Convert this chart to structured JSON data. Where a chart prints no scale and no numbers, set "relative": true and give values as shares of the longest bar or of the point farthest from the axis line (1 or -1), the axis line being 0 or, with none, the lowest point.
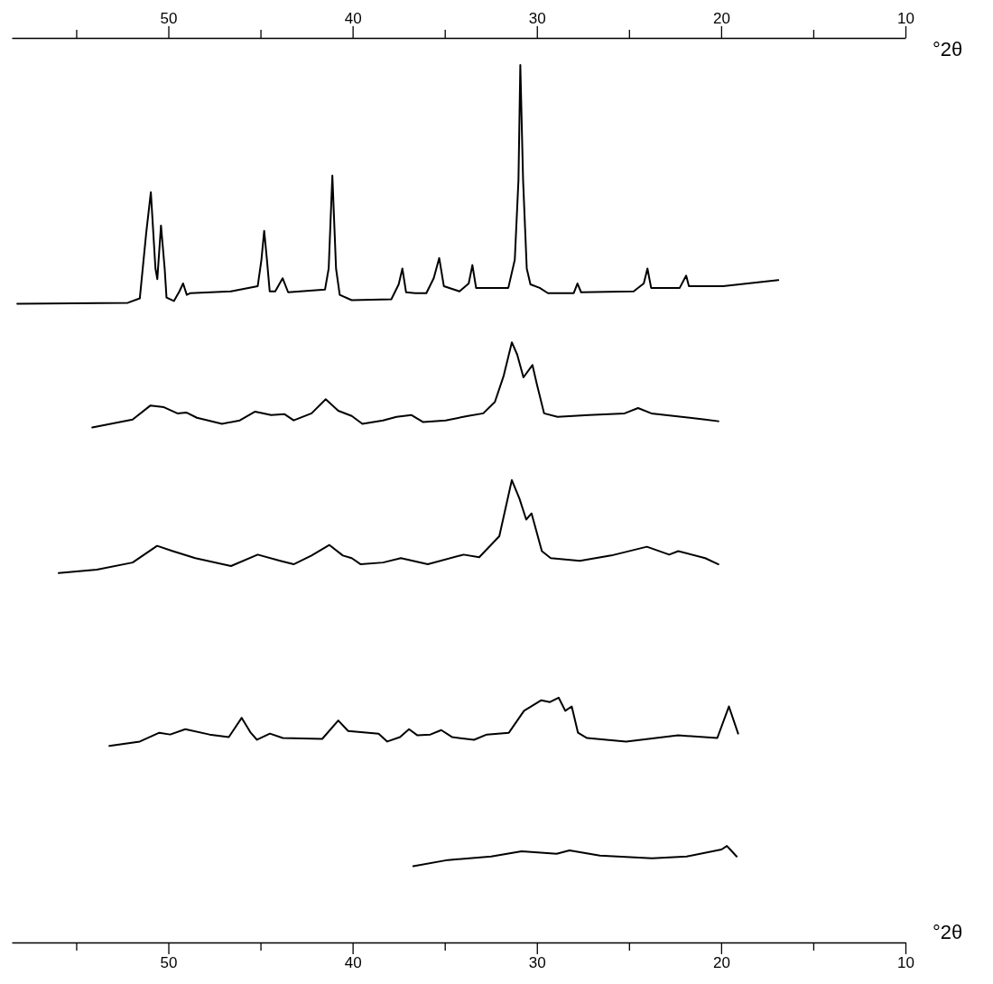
{
  "chart_data": {
    "type": "line",
    "relative": true,
    "xlabel": "°2θ",
    "x2label": "°2θ",
    "xlim": [
      58.5,
      10
    ],
    "x2lim": [
      58.5,
      10
    ],
    "xticks": [
      {
        "value": 55,
        "label": null
      },
      50,
      {
        "value": 45,
        "label": null
      },
      40,
      {
        "value": 35,
        "label": null
      },
      30,
      {
        "value": 25,
        "label": null
      },
      20,
      {
        "value": 15,
        "label": null
      },
      10
    ],
    "x2ticks": [
      {
        "value": 55,
        "label": null
      },
      50,
      {
        "value": 45,
        "label": null
      },
      40,
      {
        "value": 35,
        "label": null
      },
      30,
      {
        "value": 25,
        "label": null
      },
      20,
      {
        "value": 15,
        "label": null
      },
      10
    ],
    "grid": false,
    "series": [
      {
        "color": "#000000",
        "x": [
          58.2,
          52.2,
          51.55,
          51.2,
          50.95,
          50.7,
          50.6,
          50.4,
          50.2,
          50.1,
          49.7,
          49.4,
          49.2,
          49.0,
          48.8,
          46.6,
          45.15,
          44.95,
          44.8,
          44.65,
          44.5,
          44.2,
          43.8,
          43.5,
          41.5,
          41.3,
          41.1,
          40.9,
          40.7,
          40.05,
          37.9,
          37.5,
          37.3,
          37.1,
          36.6,
          36.0,
          35.6,
          35.3,
          35.05,
          34.2,
          33.7,
          33.5,
          33.3,
          31.55,
          31.2,
          31.0,
          30.9,
          30.75,
          30.55,
          30.35,
          29.85,
          29.4,
          28.0,
          27.8,
          27.6,
          24.75,
          24.2,
          24.0,
          23.8,
          22.25,
          21.9,
          21.75,
          19.9,
          16.9
        ],
        "values": [
          0.728,
          0.729,
          0.734,
          0.809,
          0.855,
          0.768,
          0.756,
          0.817,
          0.768,
          0.735,
          0.731,
          0.742,
          0.751,
          0.738,
          0.74,
          0.742,
          0.748,
          0.778,
          0.811,
          0.778,
          0.742,
          0.742,
          0.757,
          0.741,
          0.744,
          0.768,
          0.874,
          0.768,
          0.738,
          0.732,
          0.733,
          0.75,
          0.768,
          0.741,
          0.74,
          0.74,
          0.757,
          0.78,
          0.748,
          0.742,
          0.751,
          0.772,
          0.746,
          0.746,
          0.778,
          0.869,
          1.0,
          0.869,
          0.768,
          0.75,
          0.746,
          0.74,
          0.74,
          0.751,
          0.741,
          0.742,
          0.751,
          0.768,
          0.746,
          0.746,
          0.76,
          0.748,
          0.748,
          0.755
        ]
      },
      {
        "color": "#000000",
        "x": [
          54.13,
          51.94,
          50.97,
          50.24,
          49.51,
          49.03,
          48.45,
          47.09,
          46.12,
          45.29,
          44.42,
          43.69,
          43.2,
          42.23,
          41.46,
          40.78,
          40.05,
          39.47,
          38.35,
          37.62,
          36.8,
          36.17,
          34.95,
          33.74,
          32.91,
          32.28,
          31.8,
          31.36,
          31.07,
          30.73,
          30.24,
          30.0,
          29.61,
          28.88,
          27.18,
          25.24,
          24.51,
          23.79,
          20.87,
          20.15
        ],
        "values": [
          0.587,
          0.596,
          0.612,
          0.61,
          0.603,
          0.604,
          0.598,
          0.591,
          0.595,
          0.605,
          0.601,
          0.602,
          0.595,
          0.603,
          0.619,
          0.606,
          0.6,
          0.591,
          0.595,
          0.599,
          0.601,
          0.593,
          0.595,
          0.6,
          0.603,
          0.616,
          0.646,
          0.684,
          0.67,
          0.644,
          0.658,
          0.636,
          0.603,
          0.599,
          0.601,
          0.603,
          0.609,
          0.603,
          0.596,
          0.594
        ]
      },
      {
        "color": "#000000",
        "x": [
          55.95,
          53.88,
          51.94,
          50.61,
          49.76,
          48.54,
          46.6,
          45.15,
          43.93,
          43.2,
          42.23,
          41.26,
          40.53,
          40.05,
          39.56,
          38.35,
          37.38,
          35.92,
          33.98,
          33.13,
          32.04,
          31.36,
          30.95,
          30.58,
          30.29,
          29.73,
          29.25,
          27.67,
          25.97,
          24.03,
          22.82,
          22.33,
          20.87,
          20.15
        ],
        "values": [
          0.421,
          0.425,
          0.433,
          0.452,
          0.446,
          0.438,
          0.429,
          0.442,
          0.435,
          0.431,
          0.441,
          0.453,
          0.441,
          0.438,
          0.431,
          0.433,
          0.438,
          0.431,
          0.442,
          0.439,
          0.463,
          0.527,
          0.506,
          0.482,
          0.489,
          0.446,
          0.438,
          0.435,
          0.441,
          0.451,
          0.442,
          0.446,
          0.438,
          0.431
        ]
      },
      {
        "color": "#000000",
        "x": [
          53.2,
          51.55,
          50.49,
          49.9,
          49.08,
          47.77,
          46.72,
          46.02,
          45.53,
          45.19,
          44.49,
          43.79,
          41.65,
          40.78,
          40.24,
          38.59,
          38.12,
          37.43,
          36.94,
          36.48,
          35.78,
          35.19,
          34.59,
          33.41,
          32.72,
          31.52,
          30.7,
          29.76,
          29.29,
          28.82,
          28.46,
          28.11,
          27.77,
          27.28,
          25.16,
          22.33,
          20.21,
          19.58,
          19.08
        ],
        "values": [
          0.224,
          0.229,
          0.239,
          0.237,
          0.243,
          0.237,
          0.234,
          0.256,
          0.239,
          0.231,
          0.238,
          0.233,
          0.232,
          0.253,
          0.241,
          0.238,
          0.229,
          0.234,
          0.243,
          0.236,
          0.237,
          0.242,
          0.234,
          0.231,
          0.237,
          0.239,
          0.264,
          0.276,
          0.274,
          0.279,
          0.264,
          0.269,
          0.239,
          0.233,
          0.229,
          0.236,
          0.233,
          0.269,
          0.238
        ]
      },
      {
        "color": "#000000",
        "x": [
          36.71,
          34.83,
          32.48,
          30.83,
          28.93,
          28.23,
          26.58,
          23.75,
          21.87,
          19.98,
          19.69,
          19.51,
          19.16
        ],
        "values": [
          0.087,
          0.094,
          0.098,
          0.104,
          0.101,
          0.105,
          0.099,
          0.096,
          0.098,
          0.106,
          0.11,
          0.106,
          0.098
        ]
      }
    ]
  }
}
